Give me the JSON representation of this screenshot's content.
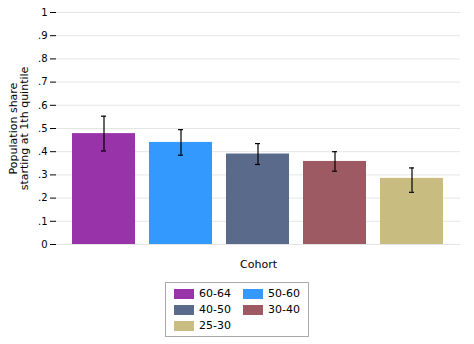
{
  "chart_data": {
    "type": "bar",
    "categories": [
      "60-64",
      "50-60",
      "40-50",
      "30-40",
      "25-30"
    ],
    "values": [
      0.478,
      0.44,
      0.39,
      0.358,
      0.285
    ],
    "errors_upper": [
      0.075,
      0.055,
      0.045,
      0.042,
      0.045
    ],
    "errors_lower": [
      0.075,
      0.055,
      0.045,
      0.042,
      0.06
    ],
    "colors": [
      "#9933aa",
      "#3399ff",
      "#5a6a8a",
      "#9e5a62",
      "#c8bc80"
    ],
    "xlabel": "Cohort",
    "ylabel": "Population share\nstarting at 1th quintile",
    "ylim": [
      0,
      1.0
    ],
    "yticks": [
      0,
      {
        "value": 0.1,
        "label": ".1"
      },
      {
        "value": 0.2,
        "label": ".2"
      },
      {
        "value": 0.3,
        "label": ".3"
      },
      {
        "value": 0.4,
        "label": ".4"
      },
      {
        "value": 0.5,
        "label": ".5"
      },
      {
        "value": 0.6,
        "label": ".6"
      },
      {
        "value": 0.7,
        "label": ".7"
      },
      {
        "value": 0.8,
        "label": ".8"
      },
      {
        "value": 0.9,
        "label": ".9"
      },
      1
    ],
    "grid": true,
    "tick_labels": "y",
    "legend": "bottom"
  }
}
